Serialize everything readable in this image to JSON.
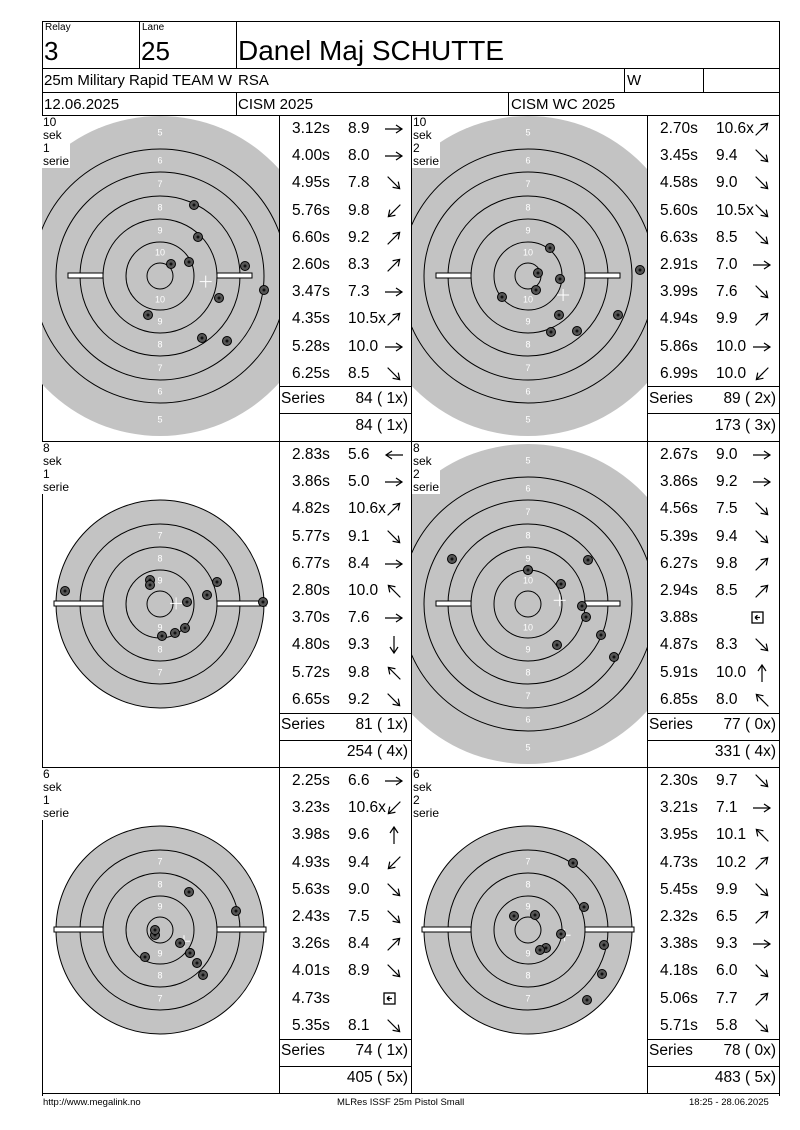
{
  "header": {
    "relay_label": "Relay",
    "relay": "3",
    "lane_label": "Lane",
    "lane": "25",
    "shooter": "Danel Maj SCHUTTE",
    "event": "25m Military Rapid TEAM W",
    "nation": "RSA",
    "gender": "W",
    "date": "12.06.2025",
    "competition1": "CISM 2025",
    "competition2": "CISM WC 2025"
  },
  "series_label": "Series",
  "colors": {
    "target_gray": "#c3c3c3",
    "ring_line": "#000000",
    "text": "#000000"
  },
  "panels": [
    {
      "title": "10 sek 1 serie",
      "shots": [
        {
          "time": "3.12s",
          "value": "8.9",
          "dir": "right"
        },
        {
          "time": "4.00s",
          "value": "8.0",
          "dir": "right"
        },
        {
          "time": "4.95s",
          "value": "7.8",
          "dir": "down-right"
        },
        {
          "time": "5.76s",
          "value": "9.8",
          "dir": "down-left"
        },
        {
          "time": "6.60s",
          "value": "9.2",
          "dir": "up-right"
        },
        {
          "time": "2.60s",
          "value": "8.3",
          "dir": "up-right"
        },
        {
          "time": "3.47s",
          "value": "7.3",
          "dir": "right"
        },
        {
          "time": "4.35s",
          "value": "10.5x",
          "dir": "up-right"
        },
        {
          "time": "5.28s",
          "value": "10.0",
          "dir": "right"
        },
        {
          "time": "6.25s",
          "value": "8.5",
          "dir": "down-right"
        }
      ],
      "series_score": "84 ( 1x)",
      "total": "84 ( 1x)"
    },
    {
      "title": "10 sek 2 serie",
      "shots": [
        {
          "time": "2.70s",
          "value": "10.6x",
          "dir": "up-right"
        },
        {
          "time": "3.45s",
          "value": "9.4",
          "dir": "down-right"
        },
        {
          "time": "4.58s",
          "value": "9.0",
          "dir": "down-right"
        },
        {
          "time": "5.60s",
          "value": "10.5x",
          "dir": "down-right"
        },
        {
          "time": "6.63s",
          "value": "8.5",
          "dir": "down-right"
        },
        {
          "time": "2.91s",
          "value": "7.0",
          "dir": "right"
        },
        {
          "time": "3.99s",
          "value": "7.6",
          "dir": "down-right"
        },
        {
          "time": "4.94s",
          "value": "9.9",
          "dir": "up-right"
        },
        {
          "time": "5.86s",
          "value": "10.0",
          "dir": "right"
        },
        {
          "time": "6.99s",
          "value": "10.0",
          "dir": "down-left"
        }
      ],
      "series_score": "89 ( 2x)",
      "total": "173 ( 3x)"
    },
    {
      "title": "8 sek 1 serie",
      "shots": [
        {
          "time": "2.83s",
          "value": "5.6",
          "dir": "left"
        },
        {
          "time": "3.86s",
          "value": "5.0",
          "dir": "right"
        },
        {
          "time": "4.82s",
          "value": "10.6x",
          "dir": "up-right"
        },
        {
          "time": "5.77s",
          "value": "9.1",
          "dir": "down-right"
        },
        {
          "time": "6.77s",
          "value": "8.4",
          "dir": "right"
        },
        {
          "time": "2.80s",
          "value": "10.0",
          "dir": "up-left"
        },
        {
          "time": "3.70s",
          "value": "7.6",
          "dir": "right"
        },
        {
          "time": "4.80s",
          "value": "9.3",
          "dir": "down"
        },
        {
          "time": "5.72s",
          "value": "9.8",
          "dir": "up-left"
        },
        {
          "time": "6.65s",
          "value": "9.2",
          "dir": "down-right"
        }
      ],
      "series_score": "81 ( 1x)",
      "total": "254 ( 4x)"
    },
    {
      "title": "8 sek 2 serie",
      "shots": [
        {
          "time": "2.67s",
          "value": "9.0",
          "dir": "right"
        },
        {
          "time": "3.86s",
          "value": "9.2",
          "dir": "right"
        },
        {
          "time": "4.56s",
          "value": "7.5",
          "dir": "down-right"
        },
        {
          "time": "5.39s",
          "value": "9.4",
          "dir": "down-right"
        },
        {
          "time": "6.27s",
          "value": "9.8",
          "dir": "up-right"
        },
        {
          "time": "2.94s",
          "value": "8.5",
          "dir": "up-right"
        },
        {
          "time": "3.88s",
          "value": "",
          "dir": "box"
        },
        {
          "time": "4.87s",
          "value": "8.3",
          "dir": "down-right"
        },
        {
          "time": "5.91s",
          "value": "10.0",
          "dir": "up"
        },
        {
          "time": "6.85s",
          "value": "8.0",
          "dir": "up-left"
        }
      ],
      "series_score": "77 ( 0x)",
      "total": "331 ( 4x)"
    },
    {
      "title": "6 sek 1 serie",
      "shots": [
        {
          "time": "2.25s",
          "value": "6.6",
          "dir": "right"
        },
        {
          "time": "3.23s",
          "value": "10.6x",
          "dir": "down-left"
        },
        {
          "time": "3.98s",
          "value": "9.6",
          "dir": "up"
        },
        {
          "time": "4.93s",
          "value": "9.4",
          "dir": "down-left"
        },
        {
          "time": "5.63s",
          "value": "9.0",
          "dir": "down-right"
        },
        {
          "time": "2.43s",
          "value": "7.5",
          "dir": "down-right"
        },
        {
          "time": "3.26s",
          "value": "8.4",
          "dir": "up-right"
        },
        {
          "time": "4.01s",
          "value": "8.9",
          "dir": "down-right"
        },
        {
          "time": "4.73s",
          "value": "",
          "dir": "box"
        },
        {
          "time": "5.35s",
          "value": "8.1",
          "dir": "down-right"
        }
      ],
      "series_score": "74 ( 1x)",
      "total": "405 ( 5x)"
    },
    {
      "title": "6 sek 2 serie",
      "shots": [
        {
          "time": "2.30s",
          "value": "9.7",
          "dir": "down-right"
        },
        {
          "time": "3.21s",
          "value": "7.1",
          "dir": "right"
        },
        {
          "time": "3.95s",
          "value": "10.1",
          "dir": "up-left"
        },
        {
          "time": "4.73s",
          "value": "10.2",
          "dir": "up-right"
        },
        {
          "time": "5.45s",
          "value": "9.9",
          "dir": "down-right"
        },
        {
          "time": "2.32s",
          "value": "6.5",
          "dir": "up-right"
        },
        {
          "time": "3.38s",
          "value": "9.3",
          "dir": "right"
        },
        {
          "time": "4.18s",
          "value": "6.0",
          "dir": "down-right"
        },
        {
          "time": "5.06s",
          "value": "7.7",
          "dir": "up-right"
        },
        {
          "time": "5.71s",
          "value": "5.8",
          "dir": "down-right"
        }
      ],
      "series_score": "78 ( 0x)",
      "total": "483 ( 5x)"
    }
  ],
  "footer": {
    "url": "http://www.megalink.no",
    "software": "MLRes ISSF 25m Pistol Small",
    "timestamp": "18:25 - 28.06.2025"
  }
}
